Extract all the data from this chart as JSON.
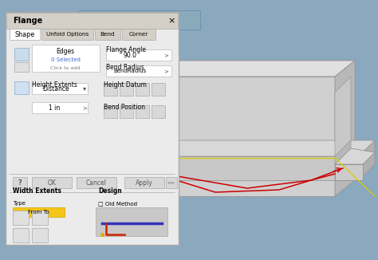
{
  "bg_color": "#8aa8be",
  "dialog_bg": "#ececec",
  "title": "Flange",
  "tabs": [
    "Shape",
    "Unfold Options",
    "Bend",
    "Corner"
  ],
  "flange_angle": "90.0",
  "bend_radius": "BendRadius",
  "height_extents": "Distance",
  "height_val": "1 in",
  "edges_label": "Edges",
  "edges_selected": "0 Selected",
  "click_to_add": "Click to add",
  "width_extents_label": "Width Extents",
  "type_label": "Type",
  "from_to_label": "From To",
  "design_label": "Design",
  "old_method_label": "Old Method",
  "height_datum_label": "Height Datum",
  "bend_position_label": "Bend Position",
  "ok_label": "OK",
  "cancel_label": "Cancel",
  "apply_label": "Apply",
  "highlight_bar_color": "#f5c518",
  "red_arrow_color": "#cc0000",
  "model_light": "#d2d2d2",
  "model_mid": "#c0c0c0",
  "model_dark": "#b0b0b0"
}
